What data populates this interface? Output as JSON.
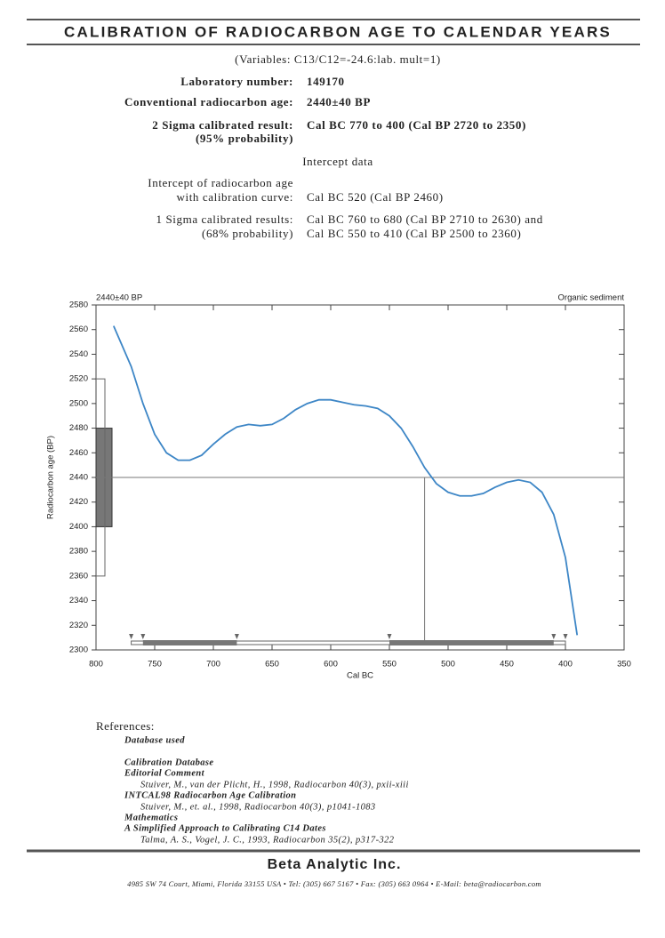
{
  "title": "CALIBRATION OF RADIOCARBON AGE TO CALENDAR YEARS",
  "variables": "(Variables: C13/C12=-24.6:lab. mult=1)",
  "fields": [
    {
      "label": [
        "Laboratory number:"
      ],
      "value": [
        "149170"
      ]
    },
    {
      "label": [
        "Conventional radiocarbon age:"
      ],
      "value": [
        "2440±40 BP"
      ]
    },
    {
      "label": [
        "2 Sigma calibrated result:",
        "(95% probability)"
      ],
      "value": [
        "Cal BC 770 to 400 (Cal BP 2720 to 2350)"
      ]
    }
  ],
  "intercept_heading": "Intercept data",
  "intercept": [
    {
      "label": [
        "Intercept of radiocarbon age",
        "with calibration curve:"
      ],
      "value": [
        "Cal BC 520 (Cal BP 2460)"
      ]
    },
    {
      "label": [
        "1 Sigma calibrated results:",
        "(68% probability)"
      ],
      "value": [
        "Cal BC 760 to 680 (Cal BP 2710 to 2630) and",
        "Cal BC 550 to 410 (Cal BP 2500 to 2360)"
      ]
    }
  ],
  "chart_data": {
    "type": "line",
    "annotation_left": "2440±40 BP",
    "annotation_right": "Organic sediment",
    "x_label": "Cal BC",
    "y_label": "Radiocarbon age (BP)",
    "xlim": [
      800,
      350
    ],
    "ylim": [
      2300,
      2580
    ],
    "xticks": [
      800,
      750,
      700,
      650,
      600,
      550,
      500,
      450,
      400,
      350
    ],
    "yticks": [
      2300,
      2320,
      2340,
      2360,
      2380,
      2400,
      2420,
      2440,
      2460,
      2480,
      2500,
      2520,
      2540,
      2560,
      2580
    ],
    "series": [
      {
        "name": "Calibration curve",
        "color": "#3d86c6",
        "x": [
          785,
          770,
          760,
          750,
          740,
          730,
          720,
          710,
          700,
          690,
          680,
          670,
          660,
          650,
          640,
          630,
          620,
          610,
          600,
          590,
          580,
          570,
          560,
          550,
          540,
          530,
          520,
          510,
          500,
          490,
          480,
          470,
          460,
          450,
          440,
          430,
          420,
          410,
          400,
          390
        ],
        "values": [
          2563,
          2530,
          2500,
          2475,
          2460,
          2454,
          2454,
          2458,
          2467,
          2475,
          2481,
          2483,
          2482,
          2483,
          2488,
          2495,
          2500,
          2503,
          2503,
          2501,
          2499,
          2498,
          2496,
          2490,
          2480,
          2465,
          2448,
          2435,
          2428,
          2425,
          2425,
          2427,
          2432,
          2436,
          2438,
          2436,
          2428,
          2410,
          2375,
          2312
        ]
      }
    ],
    "sample_age": 2440,
    "sample_error": 40,
    "intercept_x": 520,
    "range_2sigma": [
      770,
      400
    ],
    "ranges_1sigma": [
      [
        760,
        680
      ],
      [
        550,
        410
      ]
    ]
  },
  "references": {
    "heading": "References:",
    "lines": [
      "Database used",
      "Calibration Database",
      "Editorial Comment",
      "Stuiver, M., van der Plicht, H., 1998, Radiocarbon 40(3), pxii-xiii",
      "INTCAL98 Radiocarbon Age Calibration",
      "Stuiver, M., et. al., 1998, Radiocarbon 40(3), p1041-1083",
      "Mathematics",
      "A Simplified Approach to Calibrating C14 Dates",
      "Talma, A. S., Vogel, J. C., 1993, Radiocarbon 35(2), p317-322"
    ]
  },
  "footer": {
    "company": "Beta Analytic Inc.",
    "address": "4985 SW 74 Court, Miami, Florida 33155 USA • Tel: (305) 667 5167 • Fax: (305) 663 0964 • E-Mail: beta@radiocarbon.com"
  }
}
